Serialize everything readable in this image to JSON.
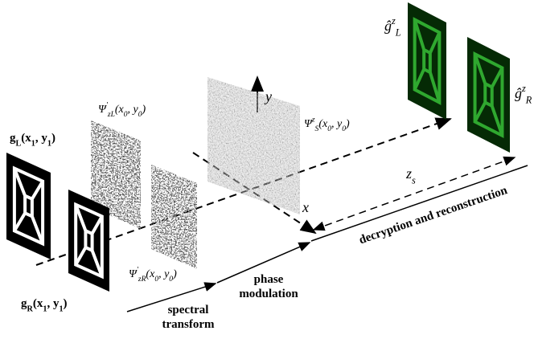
{
  "labels": {
    "g_L": [
      {
        "text": "g",
        "style": "normal"
      },
      {
        "text": "L",
        "style": "sub"
      },
      {
        "text": "(x",
        "style": "normal"
      },
      {
        "text": "1",
        "style": "sub"
      },
      {
        "text": ", y",
        "style": "normal"
      },
      {
        "text": "1",
        "style": "sub"
      },
      {
        "text": ")",
        "style": "normal"
      }
    ],
    "g_R": [
      {
        "text": "g",
        "style": "normal"
      },
      {
        "text": "R",
        "style": "sub"
      },
      {
        "text": "(x",
        "style": "normal"
      },
      {
        "text": "1",
        "style": "sub"
      },
      {
        "text": ", y",
        "style": "normal"
      },
      {
        "text": "1",
        "style": "sub"
      },
      {
        "text": ")",
        "style": "normal"
      }
    ],
    "psi_zL": [
      {
        "text": "Ψ",
        "style": "normal"
      },
      {
        "text": "'",
        "style": "sup"
      },
      {
        "text": "z",
        "style": "sub"
      },
      {
        "text": "L",
        "style": "sub"
      },
      {
        "text": "(x",
        "style": "normal"
      },
      {
        "text": "0",
        "style": "sub"
      },
      {
        "text": ", y",
        "style": "normal"
      },
      {
        "text": "0",
        "style": "sub"
      },
      {
        "text": ")",
        "style": "normal"
      }
    ],
    "psi_zR": [
      {
        "text": "Ψ",
        "style": "normal"
      },
      {
        "text": "'",
        "style": "sup"
      },
      {
        "text": "z",
        "style": "sub"
      },
      {
        "text": "R",
        "style": "sub"
      },
      {
        "text": "(x",
        "style": "normal"
      },
      {
        "text": "0",
        "style": "sub"
      },
      {
        "text": ", y",
        "style": "normal"
      },
      {
        "text": "0",
        "style": "sub"
      },
      {
        "text": ")",
        "style": "normal"
      }
    ],
    "psi_S": [
      {
        "text": "Ψ",
        "style": "normal"
      },
      {
        "text": "z",
        "style": "sup"
      },
      {
        "text": "S",
        "style": "sub"
      },
      {
        "text": "(x",
        "style": "normal"
      },
      {
        "text": "0",
        "style": "sub"
      },
      {
        "text": ", y",
        "style": "normal"
      },
      {
        "text": "0",
        "style": "sub"
      },
      {
        "text": ")",
        "style": "normal"
      }
    ],
    "ghat_L": [
      {
        "text": "ĝ",
        "style": "normal"
      },
      {
        "text": "z",
        "style": "sup"
      },
      {
        "text": "L",
        "style": "sub"
      }
    ],
    "ghat_R": [
      {
        "text": "ĝ",
        "style": "normal"
      },
      {
        "text": "z",
        "style": "sup"
      },
      {
        "text": "R",
        "style": "sub"
      }
    ]
  },
  "axes": {
    "x": "x",
    "y": "y",
    "z_s": [
      {
        "text": "z",
        "style": "normal"
      },
      {
        "text": "s",
        "style": "sub"
      }
    ]
  },
  "stages": {
    "spectral_transform": [
      "spectral",
      "transform"
    ],
    "phase_modulation": [
      "phase",
      "modulation"
    ],
    "decryption": "decryption and reconstruction"
  }
}
